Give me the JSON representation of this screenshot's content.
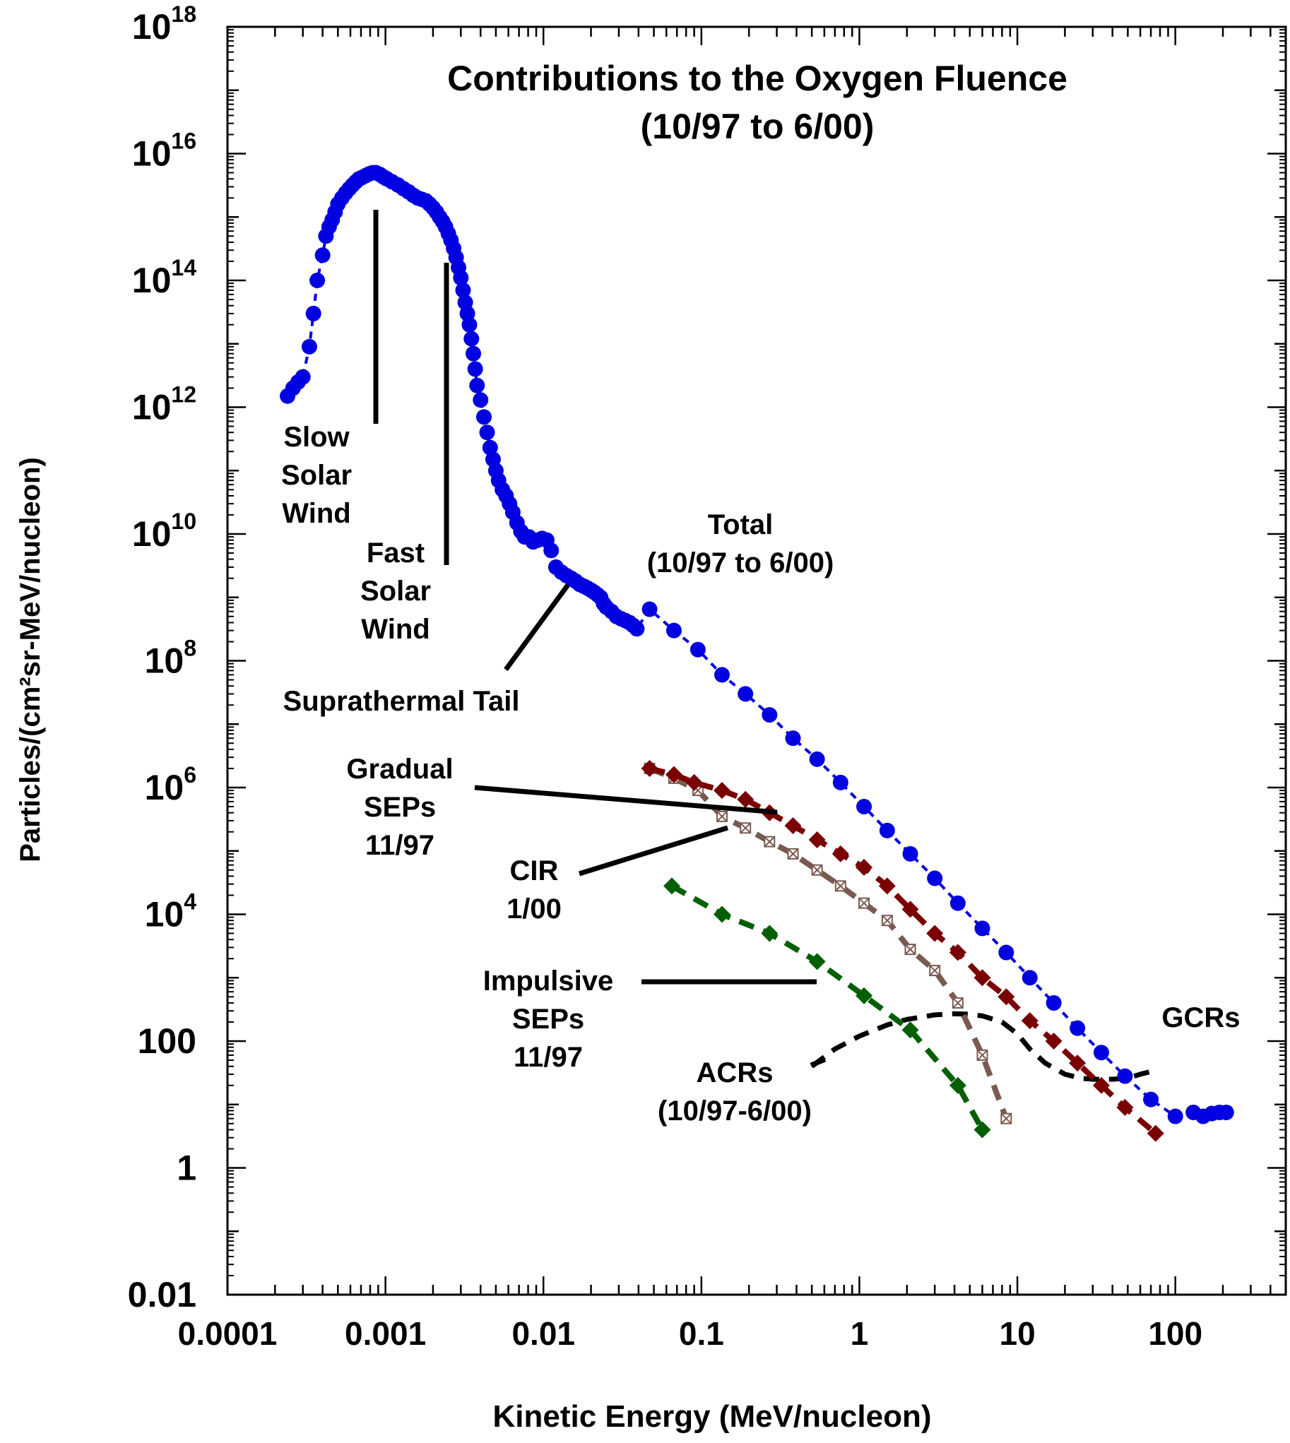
{
  "chart_data": {
    "type": "scatter",
    "title": "Contributions to the Oxygen Fluence",
    "subtitle": "(10/97 to 6/00)",
    "xlabel": "Kinetic Energy (MeV/nucleon)",
    "ylabel": "Particles/(cm²sr-MeV/nucleon)",
    "x_scale": "log",
    "y_scale": "log",
    "xlim": [
      0.0001,
      500
    ],
    "ylim": [
      0.01,
      1e+18
    ],
    "x_ticks": [
      {
        "value": 0.0001,
        "label": "0.0001"
      },
      {
        "value": 0.001,
        "label": "0.001"
      },
      {
        "value": 0.01,
        "label": "0.01"
      },
      {
        "value": 0.1,
        "label": "0.1"
      },
      {
        "value": 1,
        "label": "1"
      },
      {
        "value": 10,
        "label": "10"
      },
      {
        "value": 100,
        "label": "100"
      }
    ],
    "y_ticks": [
      {
        "value": 1e+18,
        "base": "10",
        "exp": "18"
      },
      {
        "value": 1e+16,
        "base": "10",
        "exp": "16"
      },
      {
        "value": 100000000000000.0,
        "base": "10",
        "exp": "14"
      },
      {
        "value": 1000000000000.0,
        "base": "10",
        "exp": "12"
      },
      {
        "value": 10000000000.0,
        "base": "10",
        "exp": "10"
      },
      {
        "value": 100000000.0,
        "base": "10",
        "exp": "8"
      },
      {
        "value": 1000000.0,
        "base": "10",
        "exp": "6"
      },
      {
        "value": 10000.0,
        "base": "10",
        "exp": "4"
      },
      {
        "value": 100,
        "base": "100",
        "exp": ""
      },
      {
        "value": 1,
        "base": "1",
        "exp": ""
      },
      {
        "value": 0.01,
        "base": "0.01",
        "exp": ""
      }
    ],
    "grid": false,
    "series": [
      {
        "name": "Total (10/97 to 6/00)",
        "color": "#0000e0",
        "marker": "circle",
        "line": "dashed",
        "x": [
          0.00024,
          0.00026,
          0.00028,
          0.0003,
          0.00033,
          0.00035,
          0.00037,
          0.0004,
          0.00042,
          0.00044,
          0.00046,
          0.00048,
          0.0005,
          0.00053,
          0.00056,
          0.00059,
          0.00062,
          0.00065,
          0.00068,
          0.00071,
          0.00075,
          0.00079,
          0.00083,
          0.00087,
          0.00092,
          0.00097,
          0.00102,
          0.0011,
          0.0012,
          0.0013,
          0.0014,
          0.0015,
          0.0016,
          0.0017,
          0.0018,
          0.0019,
          0.002,
          0.0021,
          0.0022,
          0.0023,
          0.0024,
          0.0025,
          0.0026,
          0.0027,
          0.0028,
          0.0029,
          0.003,
          0.0031,
          0.0032,
          0.0033,
          0.0034,
          0.0035,
          0.0036,
          0.0037,
          0.0038,
          0.004,
          0.0042,
          0.0044,
          0.0046,
          0.0048,
          0.005,
          0.0052,
          0.0055,
          0.0058,
          0.0061,
          0.0064,
          0.0068,
          0.0072,
          0.0076,
          0.0081,
          0.0086,
          0.0092,
          0.0098,
          0.0105,
          0.0112,
          0.012,
          0.013,
          0.014,
          0.015,
          0.016,
          0.017,
          0.018,
          0.019,
          0.02,
          0.021,
          0.022,
          0.023,
          0.024,
          0.025,
          0.027,
          0.029,
          0.031,
          0.033,
          0.035,
          0.037,
          0.039,
          0.047,
          0.067,
          0.095,
          0.135,
          0.19,
          0.27,
          0.38,
          0.54,
          0.76,
          1.07,
          1.5,
          2.1,
          3.0,
          4.2,
          6.0,
          8.5,
          12.0,
          17.0,
          24.0,
          34.0,
          48.0,
          70.0,
          100.0,
          130.0,
          150.0,
          170.0,
          190.0,
          210.0
        ],
        "y": [
          1500000000000.0,
          2000000000000.0,
          2500000000000.0,
          3000000000000.0,
          9000000000000.0,
          30000000000000.0,
          100000000000000.0,
          250000000000000.0,
          500000000000000.0,
          700000000000000.0,
          900000000000000.0,
          1200000000000000.0,
          1600000000000000.0,
          2000000000000000.0,
          2400000000000000.0,
          2800000000000000.0,
          3200000000000000.0,
          3600000000000000.0,
          4000000000000000.0,
          4200000000000000.0,
          4500000000000000.0,
          4800000000000000.0,
          5000000000000000.0,
          5000000000000000.0,
          4700000000000000.0,
          4300000000000000.0,
          4000000000000000.0,
          3600000000000000.0,
          3200000000000000.0,
          2800000000000000.0,
          2500000000000000.0,
          2200000000000000.0,
          2000000000000000.0,
          1900000000000000.0,
          1800000000000000.0,
          1600000000000000.0,
          1400000000000000.0,
          1200000000000000.0,
          1000000000000000.0,
          850000000000000.0,
          700000000000000.0,
          550000000000000.0,
          430000000000000.0,
          320000000000000.0,
          230000000000000.0,
          160000000000000.0,
          110000000000000.0,
          70000000000000.0,
          45000000000000.0,
          30000000000000.0,
          20000000000000.0,
          12000000000000.0,
          7000000000000.0,
          4000000000000.0,
          2200000000000.0,
          1300000000000.0,
          700000000000.0,
          400000000000.0,
          230000000000.0,
          150000000000.0,
          100000000000.0,
          70000000000.0,
          50000000000.0,
          40000000000.0,
          30000000000.0,
          22000000000.0,
          15000000000.0,
          11000000000.0,
          9000000000.0,
          9000000000.0,
          7500000000.0,
          8000000000.0,
          8500000000.0,
          8000000000.0,
          5500000000.0,
          3000000000.0,
          2500000000.0,
          2200000000.0,
          2000000000.0,
          1800000000.0,
          1600000000.0,
          1500000000.0,
          1400000000.0,
          1300000000.0,
          1200000000.0,
          1100000000.0,
          1000000000.0,
          800000000.0,
          700000000.0,
          600000000.0,
          500000000.0,
          460000000.0,
          430000000.0,
          400000000.0,
          360000000.0,
          320000000.0,
          650000000.0,
          300000000.0,
          150000000.0,
          60000000.0,
          30000000.0,
          14000000.0,
          6000000.0,
          2800000.0,
          1200000.0,
          500000.0,
          210000.0,
          90000.0,
          37000.0,
          15000.0,
          6000.0,
          2500.0,
          1000.0,
          400.0,
          160.0,
          66,
          28,
          12,
          6.5,
          7.5,
          6.5,
          7.2,
          7.5,
          7.5
        ]
      },
      {
        "name": "Gradual SEPs 11/97",
        "color": "#7a0000",
        "marker": "diamond",
        "line": "dashed",
        "x": [
          0.047,
          0.067,
          0.09,
          0.135,
          0.19,
          0.27,
          0.38,
          0.54,
          0.76,
          1.07,
          1.5,
          2.1,
          3.0,
          4.2,
          6.0,
          8.5,
          12.0,
          17.0,
          24.0,
          34.0,
          48.0,
          75.0
        ],
        "y": [
          2000000.0,
          1600000.0,
          1200000.0,
          900000.0,
          650000.0,
          400000.0,
          250000.0,
          150000.0,
          90000.0,
          55000.0,
          28000.0,
          12000.0,
          5000.0,
          2500.0,
          1000.0,
          500.0,
          210.0,
          100.0,
          45,
          20,
          9,
          3.5
        ]
      },
      {
        "name": "CIR 1/00",
        "color": "#7a5a50",
        "marker": "boxed-x",
        "line": "dashed",
        "x": [
          0.047,
          0.067,
          0.095,
          0.135,
          0.19,
          0.27,
          0.38,
          0.54,
          0.76,
          1.07,
          1.5,
          2.1,
          3.0,
          4.2,
          6.0,
          8.5
        ],
        "y": [
          2000000.0,
          1400000.0,
          900000.0,
          350000.0,
          230000.0,
          140000.0,
          90000.0,
          50000.0,
          28000.0,
          15000.0,
          8000.0,
          2800.0,
          1300.0,
          400.0,
          60,
          6
        ]
      },
      {
        "name": "Impulsive SEPs 11/97",
        "color": "#006000",
        "marker": "diamond",
        "line": "dashed",
        "x": [
          0.065,
          0.135,
          0.27,
          0.54,
          1.07,
          2.1,
          4.2,
          6.0
        ],
        "y": [
          28000.0,
          10000.0,
          5000.0,
          1800.0,
          520.0,
          150.0,
          20,
          4
        ]
      },
      {
        "name": "ACRs (10/97-6/00)",
        "color": "#000000",
        "marker": "none",
        "line": "dashed",
        "x": [
          0.5,
          0.7,
          1.0,
          1.5,
          2.0,
          3.0,
          4.0,
          5.0,
          6.0,
          8.0,
          10.0,
          12.0,
          15.0,
          20.0,
          25.0,
          30.0,
          40.0,
          50.0,
          60.0,
          70.0
        ],
        "y": [
          40,
          75,
          120,
          180,
          220,
          260,
          270,
          265,
          250,
          200,
          130,
          75,
          45,
          30,
          26,
          25,
          25,
          26,
          30,
          33
        ]
      }
    ]
  },
  "labels": {
    "slow_wind": [
      "Slow",
      "Solar",
      "Wind"
    ],
    "fast_wind": [
      "Fast",
      "Solar",
      "Wind"
    ],
    "tail": "Suprathermal Tail",
    "total": [
      "Total",
      "(10/97 to 6/00)"
    ],
    "gradual": [
      "Gradual",
      "SEPs",
      "11/97"
    ],
    "cir": [
      "CIR",
      "1/00"
    ],
    "impulsive": [
      "Impulsive",
      "SEPs",
      "11/97"
    ],
    "acrs": [
      "ACRs",
      "(10/97-6/00)"
    ],
    "gcrs": "GCRs"
  }
}
